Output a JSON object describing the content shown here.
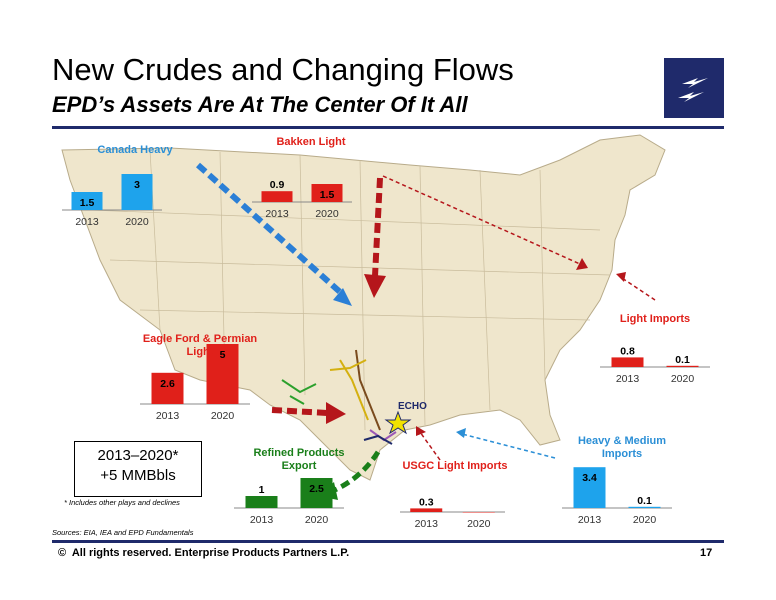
{
  "slide": {
    "title": "New Crudes and Changing Flows",
    "subtitle": "EPD’s Assets Are At The Center Of It All",
    "summary_line1": "2013–2020*",
    "summary_line2": "+5 MMBbls",
    "footnote": "* Includes other plays and declines",
    "sources": "Sources:  EIA, IEA and EPD Fundamentals",
    "copyright_symbol": "©",
    "copyright": "All rights reserved. Enterprise Products Partners L.P.",
    "page_number": "17",
    "echo_label": "ECHO",
    "brand_color": "#1f2a6b"
  },
  "chart_data": [
    {
      "type": "bar",
      "title": "Canada Heavy",
      "categories": [
        "2013",
        "2020"
      ],
      "values": [
        1.5,
        3
      ],
      "color": "#1ea3ec"
    },
    {
      "type": "bar",
      "title": "Bakken Light",
      "categories": [
        "2013",
        "2020"
      ],
      "values": [
        0.9,
        1.5
      ],
      "color": "#e0201a"
    },
    {
      "type": "bar",
      "title": "Eagle Ford & Permian Light",
      "categories": [
        "2013",
        "2020"
      ],
      "values": [
        2.6,
        5
      ],
      "color": "#e0201a"
    },
    {
      "type": "bar",
      "title": "Refined Products Export",
      "categories": [
        "2013",
        "2020"
      ],
      "values": [
        1,
        2.5
      ],
      "color": "#1a7f1a"
    },
    {
      "type": "bar",
      "title": "USGC Light Imports",
      "categories": [
        "2013",
        "2020"
      ],
      "values": [
        0.3,
        0
      ],
      "color": "#e0201a"
    },
    {
      "type": "bar",
      "title": "Heavy & Medium Imports",
      "categories": [
        "2013",
        "2020"
      ],
      "values": [
        3.4,
        0.1
      ],
      "color": "#1ea3ec"
    },
    {
      "type": "bar",
      "title": "Light Imports",
      "categories": [
        "2013",
        "2020"
      ],
      "values": [
        0.8,
        0.1
      ],
      "color": "#e0201a"
    }
  ]
}
